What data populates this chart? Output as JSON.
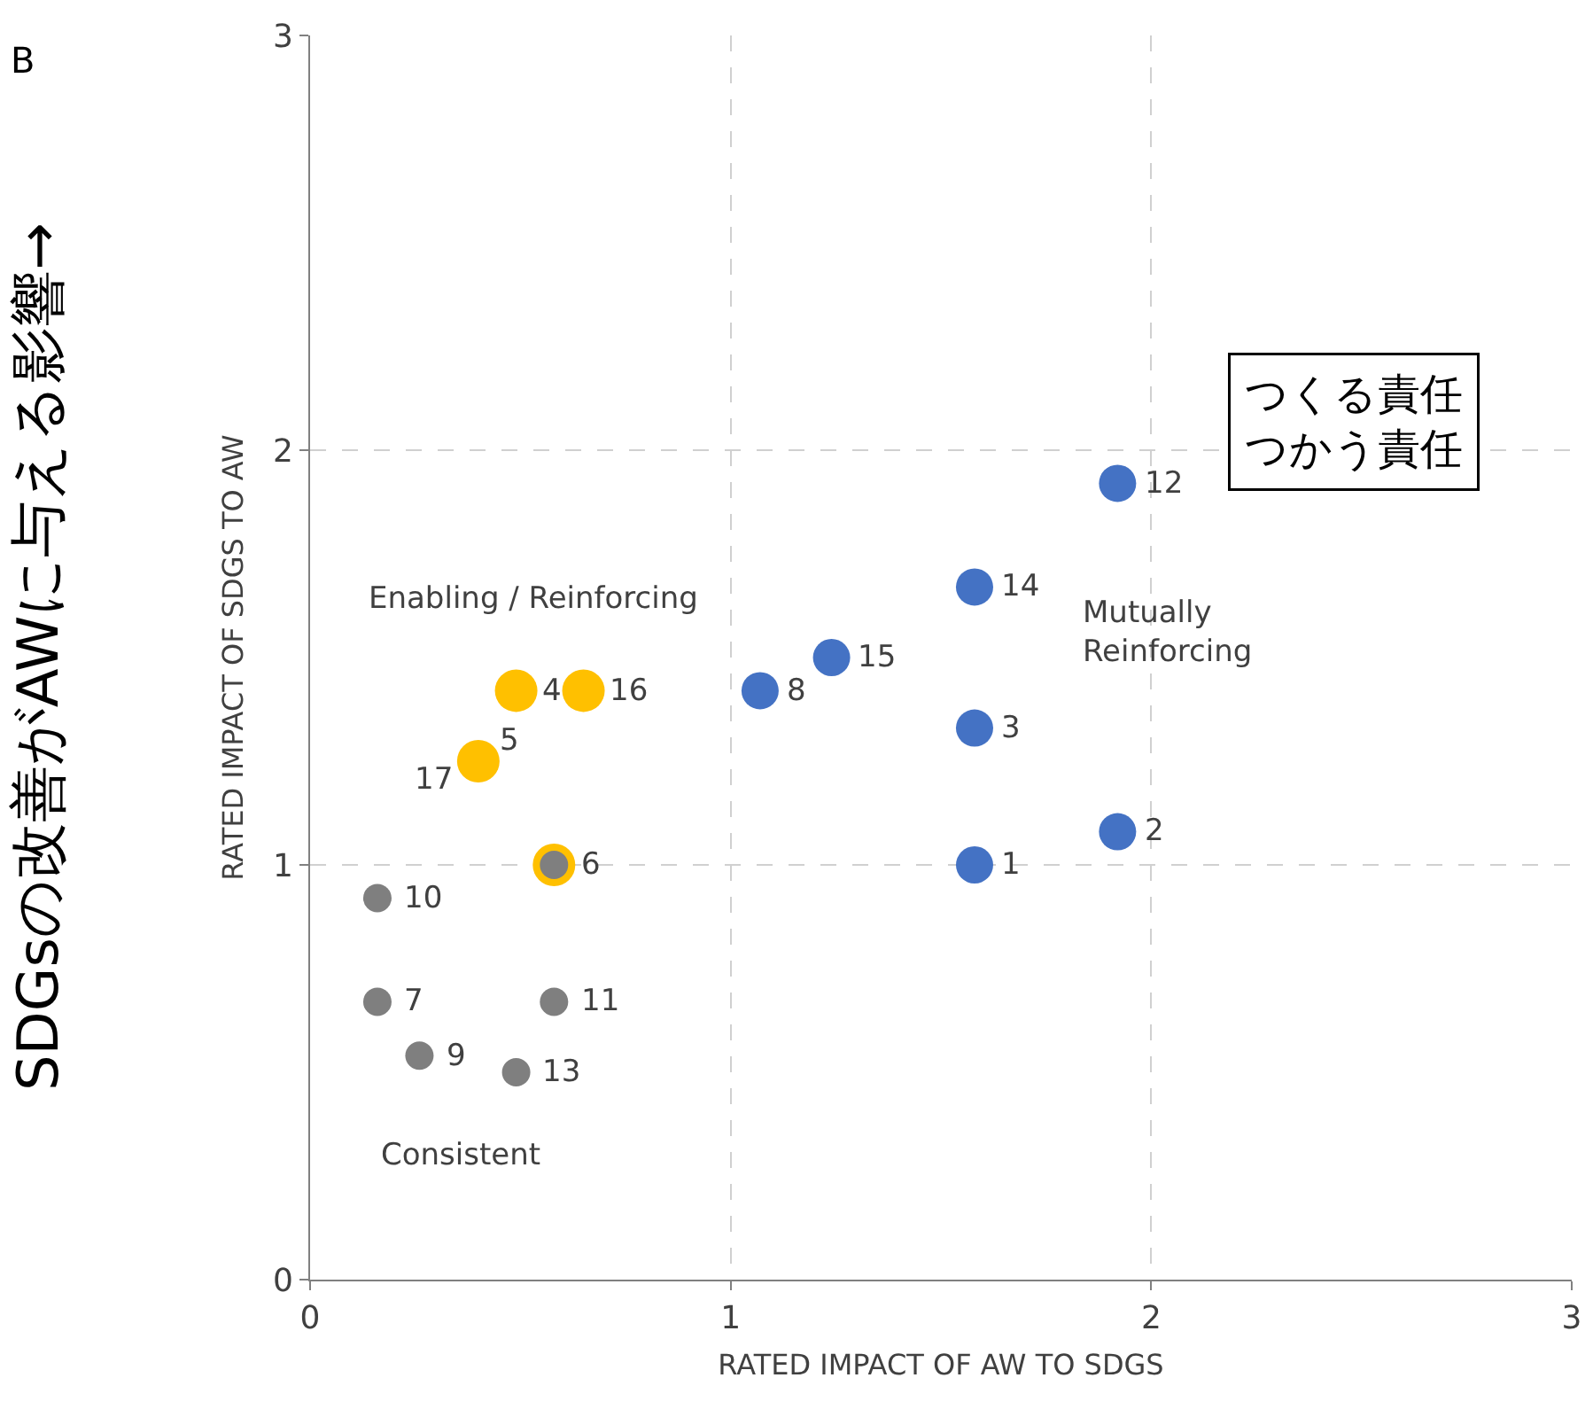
{
  "chart_data": {
    "type": "scatter",
    "xlabel": "RATED IMPACT OF AW TO SDGS",
    "ylabel": "RATED IMPACT OF SDGS TO AW",
    "xlim": [
      0,
      3
    ],
    "ylim": [
      0,
      3
    ],
    "xticks": [
      0,
      1,
      2,
      3
    ],
    "yticks": [
      0,
      1,
      2,
      3
    ],
    "grid": true,
    "marker": "circle",
    "series": [
      {
        "color": "#4472c4",
        "x": [
          1.92,
          1.58,
          1.24,
          1.07,
          1.58,
          1.92,
          1.58
        ],
        "values": [
          1.92,
          1.67,
          1.5,
          1.42,
          1.33,
          1.08,
          1.0
        ]
      },
      {
        "color": "#ffc000",
        "x": [
          0.49,
          0.65,
          0.4,
          0.58
        ],
        "values": [
          1.42,
          1.42,
          1.25,
          1.0
        ]
      },
      {
        "color": "#7f7f7f",
        "x": [
          0.58,
          0.16,
          0.16,
          0.26,
          0.58,
          0.49
        ],
        "values": [
          1.0,
          0.92,
          0.67,
          0.54,
          0.67,
          0.5
        ]
      }
    ],
    "annotations": [
      "B",
      "SDGsの改善がAWに与える影響→",
      "つくる責任",
      "つかう責任",
      "Enabling / Reinforcing",
      "Mutually\nReinforcing",
      "Consistent",
      {
        "text": "12",
        "x": 1.92,
        "y": 1.92
      },
      {
        "text": "14",
        "x": 1.58,
        "y": 1.67
      },
      {
        "text": "15",
        "x": 1.24,
        "y": 1.5
      },
      {
        "text": "8",
        "x": 1.07,
        "y": 1.42
      },
      {
        "text": "3",
        "x": 1.58,
        "y": 1.33
      },
      {
        "text": "2",
        "x": 1.92,
        "y": 1.08
      },
      {
        "text": "1",
        "x": 1.58,
        "y": 1.0
      },
      {
        "text": "4",
        "x": 0.49,
        "y": 1.42
      },
      {
        "text": "16",
        "x": 0.65,
        "y": 1.42
      },
      {
        "text": "17",
        "x": 0.4,
        "y": 1.25
      },
      {
        "text": "5",
        "x": 0.4,
        "y": 1.25
      },
      {
        "text": "6",
        "x": 0.58,
        "y": 1.0
      },
      {
        "text": "10",
        "x": 0.16,
        "y": 0.92
      },
      {
        "text": "7",
        "x": 0.16,
        "y": 0.67
      },
      {
        "text": "9",
        "x": 0.26,
        "y": 0.54
      },
      {
        "text": "11",
        "x": 0.58,
        "y": 0.67
      },
      {
        "text": "13",
        "x": 0.49,
        "y": 0.5
      }
    ]
  }
}
